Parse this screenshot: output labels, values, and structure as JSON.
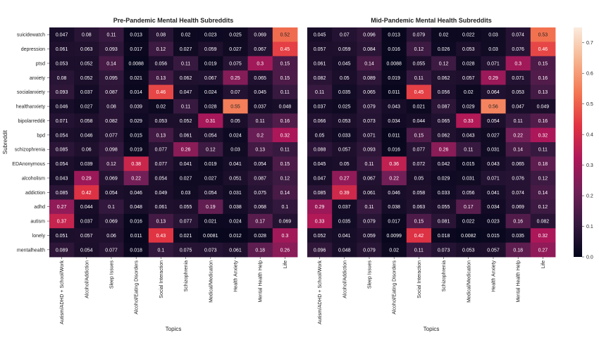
{
  "chart_data": [
    {
      "type": "heatmap",
      "title": "Pre-Pandemic Mental Health Subreddits",
      "xlabel": "Topics",
      "ylabel": "Subreddit",
      "x_categories": [
        "Autism/ADHD + School/Work",
        "Alcohol/Addiction",
        "Sleep Issues",
        "Alcohol/Eating Disorders",
        "Social Interaction",
        "Schizophrenia",
        "Medical/Medication",
        "Health Anxiety",
        "Mental Health Help",
        "Life"
      ],
      "y_categories": [
        "suicidewatch",
        "depression",
        "ptsd",
        "anxiety",
        "socialanxiety",
        "healthanxiety",
        "bipolarreddit",
        "bpd",
        "schizophrenia",
        "EDAnonymous",
        "alcoholism",
        "addiction",
        "adhd",
        "autism",
        "lonely",
        "mentalhealth"
      ],
      "values": [
        [
          "0.047",
          "0.08",
          "0.11",
          "0.013",
          "0.08",
          "0.02",
          "0.023",
          "0.025",
          "0.069",
          "0.52"
        ],
        [
          "0.061",
          "0.063",
          "0.093",
          "0.017",
          "0.12",
          "0.027",
          "0.059",
          "0.027",
          "0.067",
          "0.45"
        ],
        [
          "0.053",
          "0.052",
          "0.14",
          "0.0088",
          "0.056",
          "0.11",
          "0.019",
          "0.075",
          "0.3",
          "0.15"
        ],
        [
          "0.08",
          "0.052",
          "0.095",
          "0.021",
          "0.13",
          "0.062",
          "0.067",
          "0.25",
          "0.065",
          "0.15"
        ],
        [
          "0.093",
          "0.037",
          "0.087",
          "0.014",
          "0.46",
          "0.047",
          "0.024",
          "0.07",
          "0.045",
          "0.11"
        ],
        [
          "0.046",
          "0.027",
          "0.08",
          "0.039",
          "0.02",
          "0.11",
          "0.028",
          "0.55",
          "0.037",
          "0.048"
        ],
        [
          "0.071",
          "0.058",
          "0.082",
          "0.029",
          "0.053",
          "0.052",
          "0.31",
          "0.05",
          "0.11",
          "0.16"
        ],
        [
          "0.054",
          "0.046",
          "0.077",
          "0.015",
          "0.13",
          "0.061",
          "0.054",
          "0.024",
          "0.2",
          "0.32"
        ],
        [
          "0.085",
          "0.06",
          "0.098",
          "0.019",
          "0.077",
          "0.26",
          "0.12",
          "0.03",
          "0.13",
          "0.11"
        ],
        [
          "0.054",
          "0.039",
          "0.12",
          "0.38",
          "0.077",
          "0.041",
          "0.019",
          "0.041",
          "0.054",
          "0.15"
        ],
        [
          "0.043",
          "0.29",
          "0.069",
          "0.22",
          "0.054",
          "0.027",
          "0.027",
          "0.051",
          "0.087",
          "0.12"
        ],
        [
          "0.085",
          "0.42",
          "0.054",
          "0.046",
          "0.049",
          "0.03",
          "0.054",
          "0.031",
          "0.075",
          "0.14"
        ],
        [
          "0.27",
          "0.044",
          "0.1",
          "0.048",
          "0.061",
          "0.055",
          "0.19",
          "0.038",
          "0.068",
          "0.1"
        ],
        [
          "0.37",
          "0.037",
          "0.069",
          "0.016",
          "0.13",
          "0.077",
          "0.021",
          "0.024",
          "0.17",
          "0.069"
        ],
        [
          "0.051",
          "0.057",
          "0.06",
          "0.011",
          "0.43",
          "0.021",
          "0.0081",
          "0.012",
          "0.028",
          "0.3"
        ],
        [
          "0.089",
          "0.054",
          "0.077",
          "0.018",
          "0.1",
          "0.075",
          "0.073",
          "0.061",
          "0.18",
          "0.26"
        ]
      ]
    },
    {
      "type": "heatmap",
      "title": "Mid-Pandemic Mental Health Subreddits",
      "xlabel": "Topics",
      "ylabel": "",
      "x_categories": [
        "Autism/ADHD + School/Work",
        "Alcohol/Addiction",
        "Sleep Issues",
        "Alcohol/Eating Disorders",
        "Social Interaction",
        "Schizophrenia",
        "Medical/Medication",
        "Health Anxiety",
        "Mental Health Help",
        "Life"
      ],
      "y_categories": [
        "suicidewatch",
        "depression",
        "ptsd",
        "anxiety",
        "socialanxiety",
        "healthanxiety",
        "bipolarreddit",
        "bpd",
        "schizophrenia",
        "EDAnonymous",
        "alcoholism",
        "addiction",
        "adhd",
        "autism",
        "lonely",
        "mentalhealth"
      ],
      "values": [
        [
          "0.045",
          "0.07",
          "0.096",
          "0.013",
          "0.079",
          "0.02",
          "0.022",
          "0.03",
          "0.074",
          "0.53"
        ],
        [
          "0.057",
          "0.059",
          "0.084",
          "0.016",
          "0.12",
          "0.026",
          "0.053",
          "0.03",
          "0.076",
          "0.46"
        ],
        [
          "0.061",
          "0.045",
          "0.14",
          "0.0088",
          "0.055",
          "0.12",
          "0.028",
          "0.071",
          "0.3",
          "0.15"
        ],
        [
          "0.082",
          "0.05",
          "0.089",
          "0.019",
          "0.11",
          "0.062",
          "0.057",
          "0.29",
          "0.071",
          "0.16"
        ],
        [
          "0.11",
          "0.035",
          "0.065",
          "0.011",
          "0.45",
          "0.056",
          "0.02",
          "0.064",
          "0.053",
          "0.13"
        ],
        [
          "0.037",
          "0.025",
          "0.079",
          "0.043",
          "0.021",
          "0.087",
          "0.029",
          "0.56",
          "0.047",
          "0.049"
        ],
        [
          "0.066",
          "0.053",
          "0.073",
          "0.034",
          "0.044",
          "0.065",
          "0.33",
          "0.054",
          "0.11",
          "0.16"
        ],
        [
          "0.05",
          "0.033",
          "0.071",
          "0.011",
          "0.15",
          "0.062",
          "0.043",
          "0.027",
          "0.22",
          "0.32"
        ],
        [
          "0.088",
          "0.057",
          "0.093",
          "0.016",
          "0.077",
          "0.26",
          "0.11",
          "0.031",
          "0.14",
          "0.11"
        ],
        [
          "0.045",
          "0.05",
          "0.11",
          "0.36",
          "0.072",
          "0.042",
          "0.015",
          "0.043",
          "0.065",
          "0.18"
        ],
        [
          "0.047",
          "0.27",
          "0.067",
          "0.22",
          "0.05",
          "0.029",
          "0.031",
          "0.071",
          "0.076",
          "0.12"
        ],
        [
          "0.085",
          "0.39",
          "0.061",
          "0.046",
          "0.058",
          "0.033",
          "0.056",
          "0.041",
          "0.074",
          "0.14"
        ],
        [
          "0.29",
          "0.037",
          "0.11",
          "0.038",
          "0.063",
          "0.055",
          "0.17",
          "0.034",
          "0.069",
          "0.12"
        ],
        [
          "0.33",
          "0.035",
          "0.079",
          "0.017",
          "0.15",
          "0.081",
          "0.022",
          "0.023",
          "0.16",
          "0.082"
        ],
        [
          "0.052",
          "0.041",
          "0.059",
          "0.0099",
          "0.42",
          "0.018",
          "0.0082",
          "0.015",
          "0.035",
          "0.32"
        ],
        [
          "0.096",
          "0.048",
          "0.079",
          "0.02",
          "0.11",
          "0.073",
          "0.053",
          "0.057",
          "0.18",
          "0.27"
        ]
      ]
    }
  ],
  "colorbar": {
    "range": [
      0.0,
      0.75
    ],
    "ticks": [
      "0.0",
      "0.1",
      "0.2",
      "0.3",
      "0.4",
      "0.5",
      "0.6",
      "0.7"
    ],
    "colormap": "rocket",
    "stops": [
      "#03051a",
      "#35193e",
      "#701f57",
      "#ad1759",
      "#e13342",
      "#f37651",
      "#f6b48f",
      "#faebdd"
    ]
  },
  "grid": false,
  "legend": "none"
}
